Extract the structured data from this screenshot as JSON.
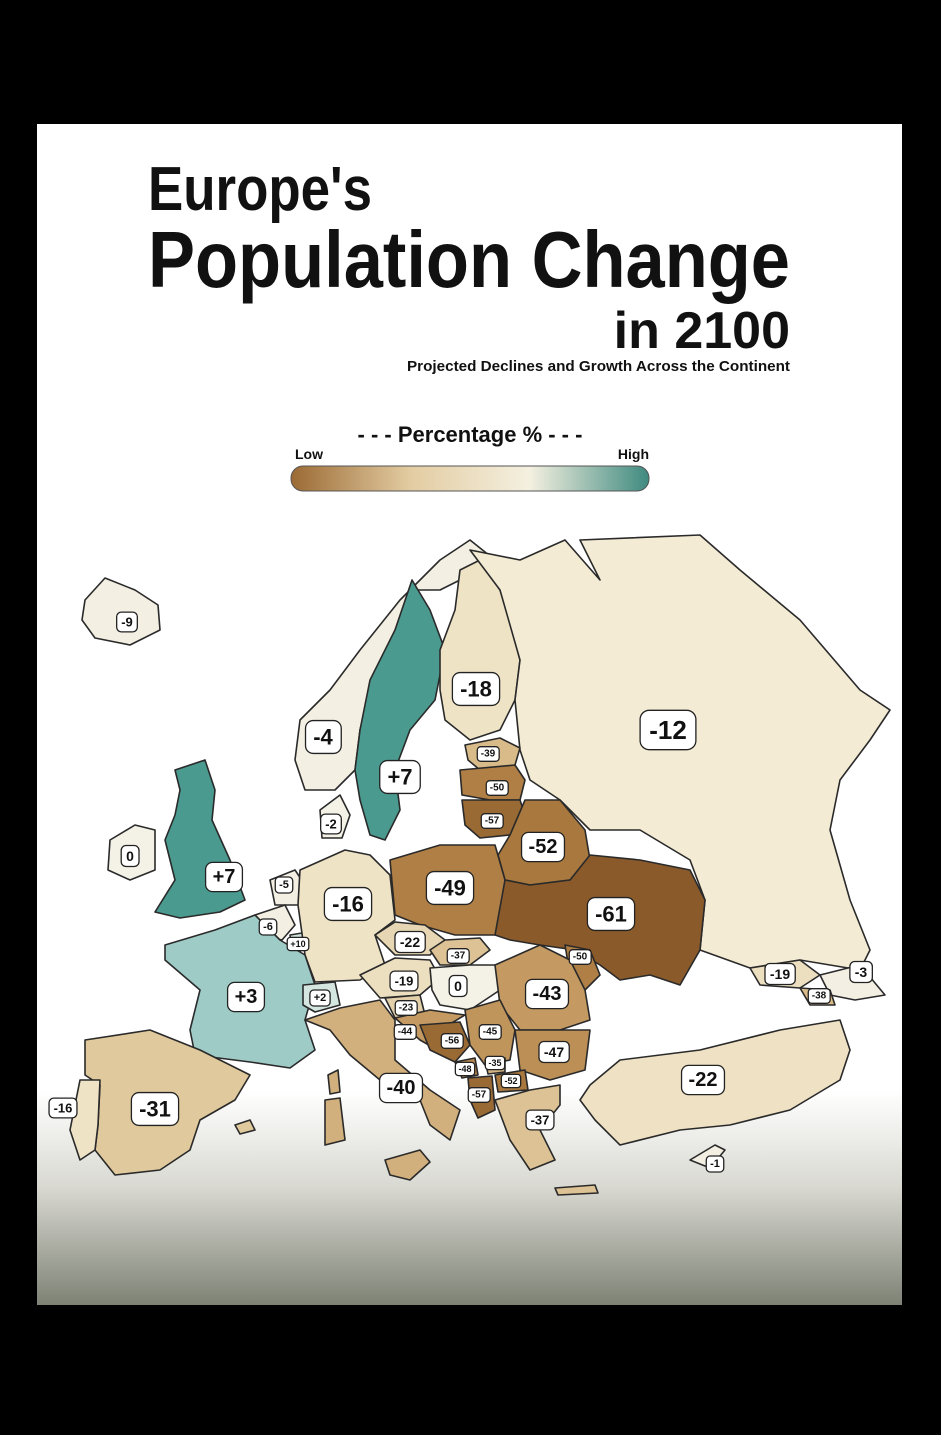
{
  "header": {
    "title_line1": "Europe's",
    "title_line2": "Population Change",
    "title_line3": "in 2100",
    "subtitle": "Projected Declines and Growth Across the Continent"
  },
  "legend": {
    "title": "- - - Percentage % - - -",
    "low": "Low",
    "high": "High",
    "colors": [
      "#9b6a34",
      "#e3cca2",
      "#f4f0e0",
      "#3f8a80"
    ]
  },
  "regions": [
    {
      "label": "-9",
      "color": "#f3efe2"
    },
    {
      "label": "-4",
      "color": "#f3efe2"
    },
    {
      "label": "+7",
      "color": "#4b9a8f"
    },
    {
      "label": "-18",
      "color": "#efe3c6"
    },
    {
      "label": "-12",
      "color": "#f3ebd3"
    },
    {
      "label": "-39",
      "color": "#d9bb8a"
    },
    {
      "label": "-50",
      "color": "#b07f45"
    },
    {
      "label": "-57",
      "color": "#9a6a35"
    },
    {
      "label": "-52",
      "color": "#a8783f"
    },
    {
      "label": "-2",
      "color": "#f4f1e6"
    },
    {
      "label": "0",
      "color": "#f4f1e6"
    },
    {
      "label": "+7",
      "color": "#4b9a8f"
    },
    {
      "label": "-5",
      "color": "#f3efe2"
    },
    {
      "label": "-6",
      "color": "#f3efe2"
    },
    {
      "label": "+10",
      "color": "#cfe3dc"
    },
    {
      "label": "-16",
      "color": "#efe3c6"
    },
    {
      "label": "-49",
      "color": "#b07f45"
    },
    {
      "label": "-61",
      "color": "#8a5a2b"
    },
    {
      "label": "-22",
      "color": "#e7d6b3"
    },
    {
      "label": "-37",
      "color": "#dcc294"
    },
    {
      "label": "-50",
      "color": "#b07f45"
    },
    {
      "label": "+3",
      "color": "#9ecbc6"
    },
    {
      "label": "+2",
      "color": "#d5e6e0"
    },
    {
      "label": "-19",
      "color": "#ecdfc0"
    },
    {
      "label": "0",
      "color": "#f4f1e6"
    },
    {
      "label": "-43",
      "color": "#c49a62"
    },
    {
      "label": "-23",
      "color": "#e3d0aa"
    },
    {
      "label": "-44",
      "color": "#c49a62"
    },
    {
      "label": "-56",
      "color": "#9a6a35"
    },
    {
      "label": "-45",
      "color": "#c0955c"
    },
    {
      "label": "-47",
      "color": "#bb8f56"
    },
    {
      "label": "-48",
      "color": "#b58850"
    },
    {
      "label": "-35",
      "color": "#d4b482"
    },
    {
      "label": "-52",
      "color": "#a8783f"
    },
    {
      "label": "-57",
      "color": "#9a6a35"
    },
    {
      "label": "-40",
      "color": "#d2b07d"
    },
    {
      "label": "-37",
      "color": "#dcc294"
    },
    {
      "label": "-22",
      "color": "#efe2c4"
    },
    {
      "label": "-31",
      "color": "#e0c99c"
    },
    {
      "label": "-16",
      "color": "#efe3c6"
    },
    {
      "label": "-1",
      "color": "#f3efe2"
    },
    {
      "label": "-19",
      "color": "#ecdfc0"
    },
    {
      "label": "-3",
      "color": "#f3efe2"
    },
    {
      "label": "-38",
      "color": "#d9bb8a"
    }
  ]
}
